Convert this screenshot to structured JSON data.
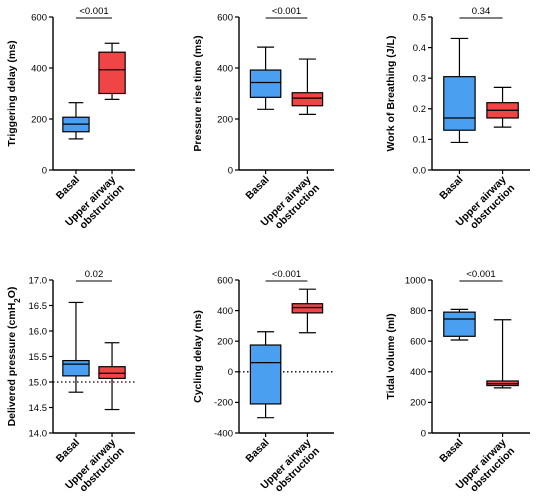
{
  "chart_data": [
    {
      "type": "box",
      "ylabel": "Triggering delay (ms)",
      "ylim": [
        0,
        600
      ],
      "yticks": [
        "0",
        "200",
        "400",
        "600"
      ],
      "categories": [
        [
          "Basal"
        ],
        [
          "Upper airway",
          "obstruction"
        ]
      ],
      "boxes": [
        {
          "min": 122,
          "q1": 150,
          "median": 180,
          "q3": 207,
          "max": 264
        },
        {
          "min": 277,
          "q1": 300,
          "median": 393,
          "q3": 462,
          "max": 497
        }
      ],
      "pvalue": "<0.001"
    },
    {
      "type": "box",
      "ylabel": "Pressure rise time (ms)",
      "ylim": [
        0,
        600
      ],
      "yticks": [
        "0",
        "200",
        "400",
        "600"
      ],
      "categories": [
        [
          "Basal"
        ],
        [
          "Upper airway",
          "obstruction"
        ]
      ],
      "boxes": [
        {
          "min": 238,
          "q1": 285,
          "median": 343,
          "q3": 392,
          "max": 482
        },
        {
          "min": 218,
          "q1": 252,
          "median": 282,
          "q3": 303,
          "max": 435
        }
      ],
      "pvalue": "<0.001"
    },
    {
      "type": "box",
      "ylabel": "Work of Breathing (J/L)",
      "ylim": [
        0,
        0.5
      ],
      "yticks": [
        "0.0",
        "0.1",
        "0.2",
        "0.3",
        "0.4",
        "0.5"
      ],
      "categories": [
        [
          "Basal"
        ],
        [
          "Upper airway",
          "obstruction"
        ]
      ],
      "boxes": [
        {
          "min": 0.09,
          "q1": 0.13,
          "median": 0.17,
          "q3": 0.305,
          "max": 0.43
        },
        {
          "min": 0.14,
          "q1": 0.17,
          "median": 0.195,
          "q3": 0.22,
          "max": 0.27
        }
      ],
      "pvalue": "0.34"
    },
    {
      "type": "box",
      "ylabel": "Delivered pressure (cmH2O)",
      "ylabel_parts": [
        "Delivered pressure (cmH",
        "2",
        "O)"
      ],
      "ylim": [
        14.0,
        17.0
      ],
      "yticks": [
        "14.0",
        "14.5",
        "15.0",
        "15.5",
        "16.0",
        "16.5",
        "17.0"
      ],
      "categories": [
        [
          "Basal"
        ],
        [
          "Upper airway",
          "obstruction"
        ]
      ],
      "boxes": [
        {
          "min": 14.8,
          "q1": 15.12,
          "median": 15.35,
          "q3": 15.42,
          "max": 16.56
        },
        {
          "min": 14.46,
          "q1": 15.07,
          "median": 15.17,
          "q3": 15.3,
          "max": 15.77
        }
      ],
      "refline": 15.0,
      "pvalue": "0.02"
    },
    {
      "type": "box",
      "ylabel": "Cycling delay (ms)",
      "ylim": [
        -400,
        600
      ],
      "yticks": [
        "-400",
        "-200",
        "0",
        "200",
        "400",
        "600"
      ],
      "categories": [
        [
          "Basal"
        ],
        [
          "Upper airway",
          "obstruction"
        ]
      ],
      "boxes": [
        {
          "min": -300,
          "q1": -210,
          "median": 60,
          "q3": 175,
          "max": 262
        },
        {
          "min": 255,
          "q1": 385,
          "median": 420,
          "q3": 445,
          "max": 540
        }
      ],
      "refline": 0,
      "pvalue": "<0.001"
    },
    {
      "type": "box",
      "ylabel": "Tidal volume (ml)",
      "ylim": [
        0,
        1000
      ],
      "yticks": [
        "0",
        "200",
        "400",
        "600",
        "800",
        "1000"
      ],
      "categories": [
        [
          "Basal"
        ],
        [
          "Upper airway",
          "obstruction"
        ]
      ],
      "boxes": [
        {
          "min": 608,
          "q1": 632,
          "median": 745,
          "q3": 790,
          "max": 808
        },
        {
          "min": 295,
          "q1": 310,
          "median": 322,
          "q3": 340,
          "max": 740
        }
      ],
      "pvalue": "<0.001"
    }
  ],
  "colors": {
    "basal": "#4a9ff0",
    "obstruction": "#f04545",
    "axis": "#000000"
  }
}
